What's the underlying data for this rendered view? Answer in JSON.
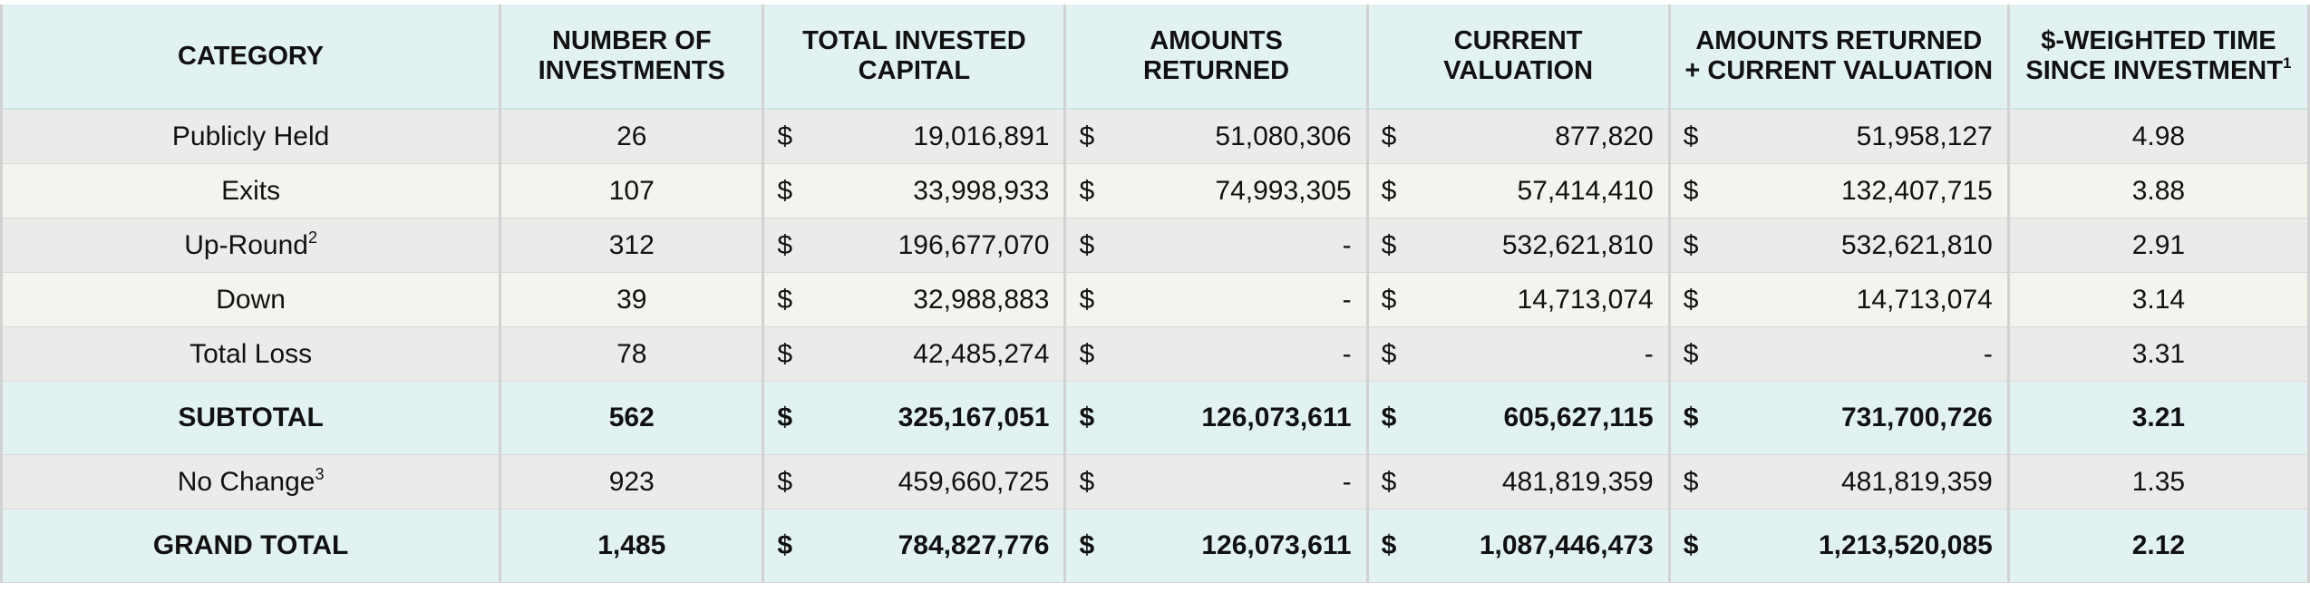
{
  "headers": {
    "category": "CATEGORY",
    "num_line1": "NUMBER OF",
    "num_line2": "INVESTMENTS",
    "invested_line1": "TOTAL INVESTED",
    "invested_line2": "CAPITAL",
    "returned_line1": "AMOUNTS",
    "returned_line2": "RETURNED",
    "valuation_line1": "CURRENT",
    "valuation_line2": "VALUATION",
    "combined_line1": "AMOUNTS RETURNED",
    "combined_line2": "+ CURRENT VALUATION",
    "time_line1": "$-WEIGHTED TIME",
    "time_line2": "SINCE INVESTMENT",
    "time_footnote": "1"
  },
  "currency": "$",
  "rows": [
    {
      "category": "Publicly Held",
      "footnote": "",
      "count": "26",
      "invested": "19,016,891",
      "returned": "51,080,306",
      "valuation": "877,820",
      "combined": "51,958,127",
      "time": "4.98"
    },
    {
      "category": "Exits",
      "footnote": "",
      "count": "107",
      "invested": "33,998,933",
      "returned": "74,993,305",
      "valuation": "57,414,410",
      "combined": "132,407,715",
      "time": "3.88"
    },
    {
      "category": "Up-Round",
      "footnote": "2",
      "count": "312",
      "invested": "196,677,070",
      "returned": "-",
      "valuation": "532,621,810",
      "combined": "532,621,810",
      "time": "2.91"
    },
    {
      "category": "Down",
      "footnote": "",
      "count": "39",
      "invested": "32,988,883",
      "returned": "-",
      "valuation": "14,713,074",
      "combined": "14,713,074",
      "time": "3.14"
    },
    {
      "category": "Total Loss",
      "footnote": "",
      "count": "78",
      "invested": "42,485,274",
      "returned": "-",
      "valuation": "-",
      "combined": "-",
      "time": "3.31"
    }
  ],
  "subtotal": {
    "category": "SUBTOTAL",
    "count": "562",
    "invested": "325,167,051",
    "returned": "126,073,611",
    "valuation": "605,627,115",
    "combined": "731,700,726",
    "time": "3.21"
  },
  "no_change": {
    "category": "No Change",
    "footnote": "3",
    "count": "923",
    "invested": "459,660,725",
    "returned": "-",
    "valuation": "481,819,359",
    "combined": "481,819,359",
    "time": "1.35"
  },
  "grand_total": {
    "category": "GRAND TOTAL",
    "count": "1,485",
    "invested": "784,827,776",
    "returned": "126,073,611",
    "valuation": "1,087,446,473",
    "combined": "1,213,520,085",
    "time": "2.12"
  }
}
